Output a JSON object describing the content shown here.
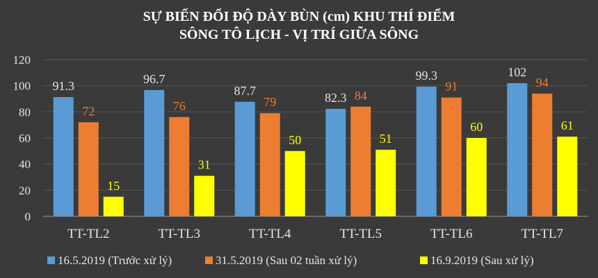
{
  "chart_data": {
    "type": "bar",
    "title_lines": [
      "SỰ BIẾN ĐỔI ĐỘ DÀY BÙN (cm) KHU THÍ ĐIỂM",
      "SÔNG TÔ LỊCH - VỊ TRÍ GIỮA SÔNG"
    ],
    "categories": [
      "TT-TL2",
      "TT-TL3",
      "TT-TL4",
      "TT-TL5",
      "TT-TL6",
      "TT-TL7"
    ],
    "series": [
      {
        "name": "16.5.2019 (Trước xử lý)",
        "values": [
          91.3,
          96.7,
          87.7,
          82.3,
          99.3,
          102
        ],
        "color": "#5b9bd5",
        "label_color": "#e6e6e6"
      },
      {
        "name": "31.5.2019 (Sau 02 tuần xử lý)",
        "values": [
          72,
          76,
          79,
          84,
          91,
          94
        ],
        "color": "#ed7d31",
        "label_color": "#ed7d31"
      },
      {
        "name": "16.9.2019 (Sau xử lý)",
        "values": [
          15,
          31,
          50,
          51,
          60,
          61
        ],
        "color": "#ffff00",
        "label_color": "#ffff00"
      }
    ],
    "ylim": [
      0,
      120
    ],
    "yticks": [
      0,
      20,
      40,
      60,
      80,
      100,
      120
    ],
    "xlabel": "",
    "ylabel": "",
    "grid": true,
    "legend_position": "bottom"
  }
}
